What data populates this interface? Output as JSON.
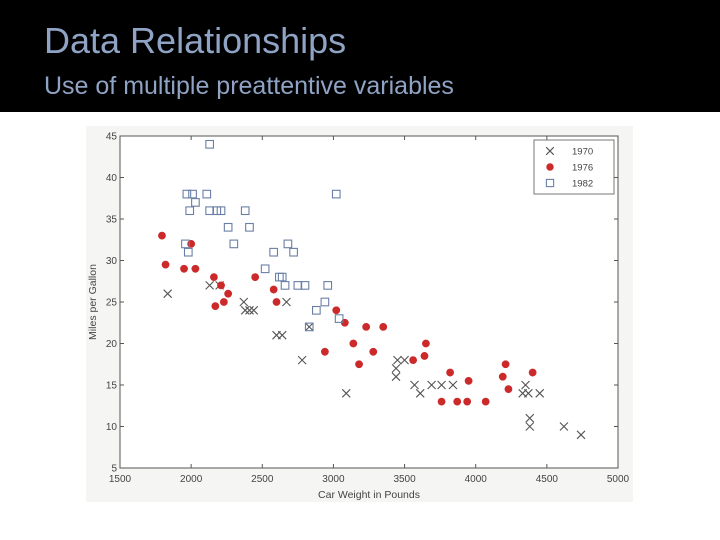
{
  "slide": {
    "title": "Data Relationships",
    "subtitle": "Use of multiple preattentive variables"
  },
  "chart_data": {
    "type": "scatter",
    "title": "",
    "xlabel": "Car Weight in Pounds",
    "ylabel": "Miles per Gallon",
    "xlim": [
      1500,
      5000
    ],
    "ylim": [
      5,
      45
    ],
    "xticks": [
      1500,
      2000,
      2500,
      3000,
      3500,
      4000,
      4500,
      5000
    ],
    "yticks": [
      5,
      10,
      15,
      20,
      25,
      30,
      35,
      40,
      45
    ],
    "grid": false,
    "legend_position": "top-right",
    "series": [
      {
        "name": "1970",
        "marker": "x",
        "color": "#555555",
        "points": [
          [
            1835,
            26
          ],
          [
            2130,
            27
          ],
          [
            2200,
            27
          ],
          [
            2370,
            25
          ],
          [
            2380,
            24
          ],
          [
            2410,
            24
          ],
          [
            2440,
            24
          ],
          [
            2600,
            21
          ],
          [
            2640,
            21
          ],
          [
            2670,
            25
          ],
          [
            2780,
            18
          ],
          [
            2830,
            22
          ],
          [
            3090,
            14
          ],
          [
            3440,
            16
          ],
          [
            3440,
            17
          ],
          [
            3450,
            18
          ],
          [
            3500,
            18
          ],
          [
            3570,
            15
          ],
          [
            3610,
            14
          ],
          [
            3690,
            15
          ],
          [
            3760,
            15
          ],
          [
            3840,
            15
          ],
          [
            4330,
            14
          ],
          [
            4350,
            15
          ],
          [
            4370,
            14
          ],
          [
            4380,
            10
          ],
          [
            4380,
            11
          ],
          [
            4450,
            14
          ],
          [
            4620,
            10
          ],
          [
            4740,
            9
          ]
        ]
      },
      {
        "name": "1976",
        "marker": "o",
        "color": "#cc2a2a",
        "points": [
          [
            1795,
            33
          ],
          [
            1820,
            29.5
          ],
          [
            1950,
            29
          ],
          [
            2000,
            32
          ],
          [
            2030,
            29
          ],
          [
            2160,
            28
          ],
          [
            2170,
            24.5
          ],
          [
            2210,
            27
          ],
          [
            2230,
            25
          ],
          [
            2260,
            26
          ],
          [
            2450,
            28
          ],
          [
            2580,
            26.5
          ],
          [
            2600,
            25
          ],
          [
            2940,
            19
          ],
          [
            3020,
            24
          ],
          [
            3080,
            22.5
          ],
          [
            3140,
            20
          ],
          [
            3180,
            17.5
          ],
          [
            3230,
            22
          ],
          [
            3280,
            19
          ],
          [
            3350,
            22
          ],
          [
            3560,
            18
          ],
          [
            3640,
            18.5
          ],
          [
            3650,
            20
          ],
          [
            3760,
            13
          ],
          [
            3820,
            16.5
          ],
          [
            3870,
            13
          ],
          [
            3940,
            13
          ],
          [
            3950,
            15.5
          ],
          [
            4070,
            13
          ],
          [
            4190,
            16
          ],
          [
            4210,
            17.5
          ],
          [
            4230,
            14.5
          ],
          [
            4400,
            16.5
          ]
        ]
      },
      {
        "name": "1982",
        "marker": "s",
        "color": "#6a7fa6",
        "points": [
          [
            1960,
            32
          ],
          [
            1970,
            38
          ],
          [
            1980,
            31
          ],
          [
            1990,
            36
          ],
          [
            2010,
            38
          ],
          [
            2030,
            37
          ],
          [
            2110,
            38
          ],
          [
            2130,
            44
          ],
          [
            2130,
            36
          ],
          [
            2180,
            36
          ],
          [
            2210,
            36
          ],
          [
            2260,
            34
          ],
          [
            2300,
            32
          ],
          [
            2380,
            36
          ],
          [
            2410,
            34
          ],
          [
            2520,
            29
          ],
          [
            2580,
            31
          ],
          [
            2620,
            28
          ],
          [
            2640,
            28
          ],
          [
            2660,
            27
          ],
          [
            2680,
            32
          ],
          [
            2720,
            31
          ],
          [
            2750,
            27
          ],
          [
            2800,
            27
          ],
          [
            2830,
            22
          ],
          [
            2880,
            24
          ],
          [
            2940,
            25
          ],
          [
            2960,
            27
          ],
          [
            3020,
            38
          ],
          [
            3040,
            23
          ]
        ]
      }
    ]
  }
}
